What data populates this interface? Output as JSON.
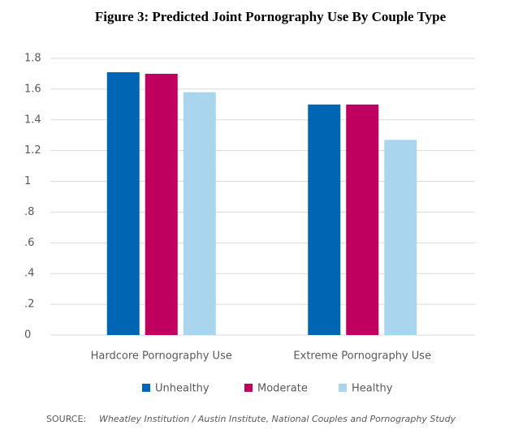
{
  "chart_data": {
    "type": "bar",
    "title": "Figure 3: Predicted Joint Pornography Use By Couple Type",
    "categories": [
      "Hardcore Pornography Use",
      "Extreme Pornography Use"
    ],
    "series": [
      {
        "name": "Unhealthy",
        "color": "#0066b3",
        "values": [
          1.71,
          1.5
        ]
      },
      {
        "name": "Moderate",
        "color": "#c0005f",
        "values": [
          1.7,
          1.5
        ]
      },
      {
        "name": "Healthy",
        "color": "#a9d5ef",
        "values": [
          1.58,
          1.27
        ]
      }
    ],
    "ylim": [
      0,
      1.8
    ],
    "yticks": [
      0,
      {
        "value": 0.2,
        "label": ".2"
      },
      {
        "value": 0.4,
        "label": ".4"
      },
      {
        "value": 0.6,
        "label": ".6"
      },
      {
        "value": 0.8,
        "label": ".8"
      },
      1,
      1.2,
      1.4,
      1.6,
      1.8
    ],
    "grid": true,
    "legend": "bottom",
    "source_label": "SOURCE:",
    "source_text": "Wheatley Institution / Austin Institute, National Couples and Pornography Study"
  }
}
